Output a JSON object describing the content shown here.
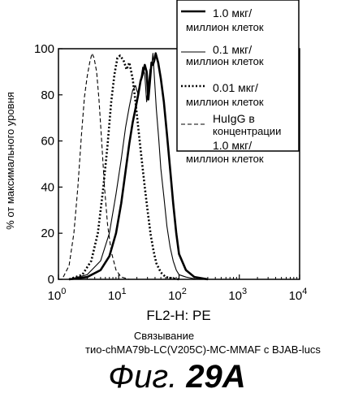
{
  "chart_data": {
    "type": "line",
    "title": "",
    "xlabel": "FL2-H: PE",
    "ylabel": "% от максимального уровня",
    "x_scale": "log",
    "xlim": [
      1,
      10000
    ],
    "ylim": [
      0,
      100
    ],
    "x_ticks": [
      {
        "value": 1,
        "base": "10",
        "exp": "0"
      },
      {
        "value": 10,
        "base": "10",
        "exp": "1"
      },
      {
        "value": 100,
        "base": "10",
        "exp": "2"
      },
      {
        "value": 1000,
        "base": "10",
        "exp": "3"
      },
      {
        "value": 10000,
        "base": "10",
        "exp": "4"
      }
    ],
    "y_ticks": [
      "0",
      "20",
      "40",
      "60",
      "80",
      "100"
    ],
    "y_tick_values": [
      0,
      20,
      40,
      60,
      80,
      100
    ],
    "legend_position": "top-right",
    "series": [
      {
        "name_lines": [
          "1.0 мкг/",
          "миллион клеток"
        ],
        "style": "thick-solid",
        "x": [
          1.5,
          3,
          5,
          7,
          9,
          11,
          13,
          15,
          17,
          19,
          21,
          23,
          25,
          27,
          29,
          31,
          33,
          35,
          37,
          39,
          41,
          45,
          50,
          56,
          63,
          71,
          80,
          90,
          100,
          130,
          180,
          300
        ],
        "y": [
          0,
          1,
          4,
          10,
          20,
          33,
          47,
          59,
          68,
          74,
          80,
          86,
          89,
          93,
          90,
          78,
          86,
          94,
          93,
          95,
          98,
          94,
          87,
          77,
          63,
          48,
          33,
          20,
          11,
          4,
          1,
          0
        ]
      },
      {
        "name_lines": [
          "0.1 мкг/",
          "миллион клеток"
        ],
        "style": "thin-solid",
        "x": [
          1.5,
          3,
          5,
          7,
          9,
          11,
          13,
          15,
          17,
          19,
          21,
          23,
          25,
          27,
          29,
          31,
          33,
          35,
          37,
          39,
          42,
          46,
          50,
          56,
          63,
          71,
          80,
          90,
          100,
          130,
          200
        ],
        "y": [
          0,
          2,
          8,
          20,
          37,
          52,
          66,
          75,
          82,
          84,
          80,
          86,
          92,
          89,
          77,
          84,
          91,
          92,
          98,
          88,
          74,
          61,
          48,
          36,
          23,
          14,
          8,
          4,
          2,
          1,
          0
        ]
      },
      {
        "name_lines": [
          "0.01 мкг/",
          "миллион клеток"
        ],
        "style": "dotted",
        "x": [
          1.5,
          2.5,
          3.5,
          4.5,
          5.5,
          6.5,
          7.5,
          8.5,
          9.5,
          10.5,
          12,
          13.5,
          15,
          17,
          19,
          21,
          24,
          27,
          30,
          34,
          38,
          42,
          50,
          60,
          80,
          100
        ],
        "y": [
          0,
          2,
          8,
          20,
          39,
          58,
          77,
          89,
          96,
          97,
          95,
          91,
          94,
          87,
          77,
          66,
          52,
          40,
          30,
          19,
          12,
          7,
          3,
          1,
          0.4,
          0
        ]
      },
      {
        "name_lines": [
          "HuIgG  в",
          "концентрации",
          "1.0 мкг/",
          "миллион клеток"
        ],
        "style": "dashed",
        "x": [
          1.2,
          1.5,
          1.8,
          2.1,
          2.4,
          2.7,
          3.0,
          3.3,
          3.6,
          3.9,
          4.3,
          4.7,
          5.2,
          5.8,
          6.5,
          7.5,
          9,
          11,
          15
        ],
        "y": [
          1,
          6,
          20,
          40,
          62,
          79,
          88,
          94,
          98,
          96,
          90,
          78,
          60,
          40,
          24,
          12,
          4,
          1,
          0
        ]
      }
    ]
  },
  "caption": {
    "line1": "Связывание",
    "line2": "тио-chMA79b-LC(V205C)-MC-MMAF с BJAB-lucs"
  },
  "figure_label": {
    "prefix": "Фиг.",
    "number": "29A"
  }
}
